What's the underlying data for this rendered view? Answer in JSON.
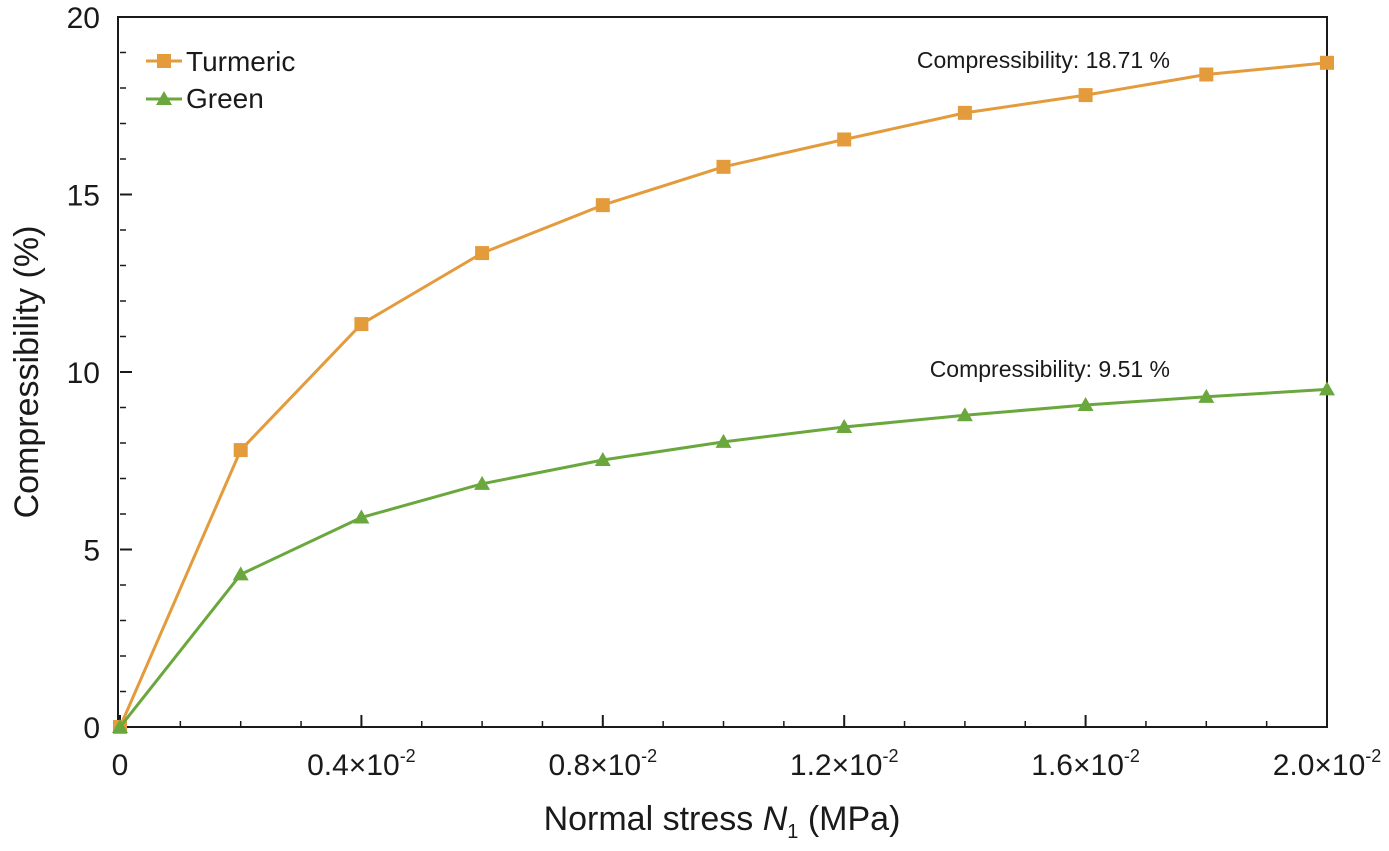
{
  "chart_data": {
    "type": "line",
    "xlabel": {
      "prefix": "Normal stress ",
      "var": "N",
      "sub": "1",
      "suffix": " (MPa)"
    },
    "ylabel": "Compressibility (%)",
    "xlim": [
      0,
      0.02
    ],
    "ylim": [
      0,
      20
    ],
    "x_ticks": [
      {
        "value": 0,
        "base": "0",
        "exp": ""
      },
      {
        "value": 0.004,
        "base": "0.4×10",
        "exp": "-2"
      },
      {
        "value": 0.008,
        "base": "0.8×10",
        "exp": "-2"
      },
      {
        "value": 0.012,
        "base": "1.2×10",
        "exp": "-2"
      },
      {
        "value": 0.016,
        "base": "1.6×10",
        "exp": "-2"
      },
      {
        "value": 0.02,
        "base": "2.0×10",
        "exp": "-2"
      }
    ],
    "y_ticks": [
      0,
      5,
      10,
      15,
      20
    ],
    "grid": false,
    "legend_position": "top-left",
    "x": [
      0,
      0.002,
      0.004,
      0.006,
      0.008,
      0.01,
      0.012,
      0.014,
      0.016,
      0.018,
      0.02
    ],
    "series": [
      {
        "name": "Turmeric",
        "color": "#e39b3c",
        "marker": "square",
        "values": [
          0,
          7.8,
          11.35,
          13.35,
          14.7,
          15.78,
          16.55,
          17.3,
          17.8,
          18.38,
          18.71
        ],
        "annotation": "Compressibility: 18.71 %"
      },
      {
        "name": "Green",
        "color": "#6aa83e",
        "marker": "triangle",
        "values": [
          0,
          4.3,
          5.9,
          6.85,
          7.52,
          8.03,
          8.45,
          8.78,
          9.07,
          9.3,
          9.51
        ],
        "annotation": "Compressibility: 9.51 %"
      }
    ]
  }
}
